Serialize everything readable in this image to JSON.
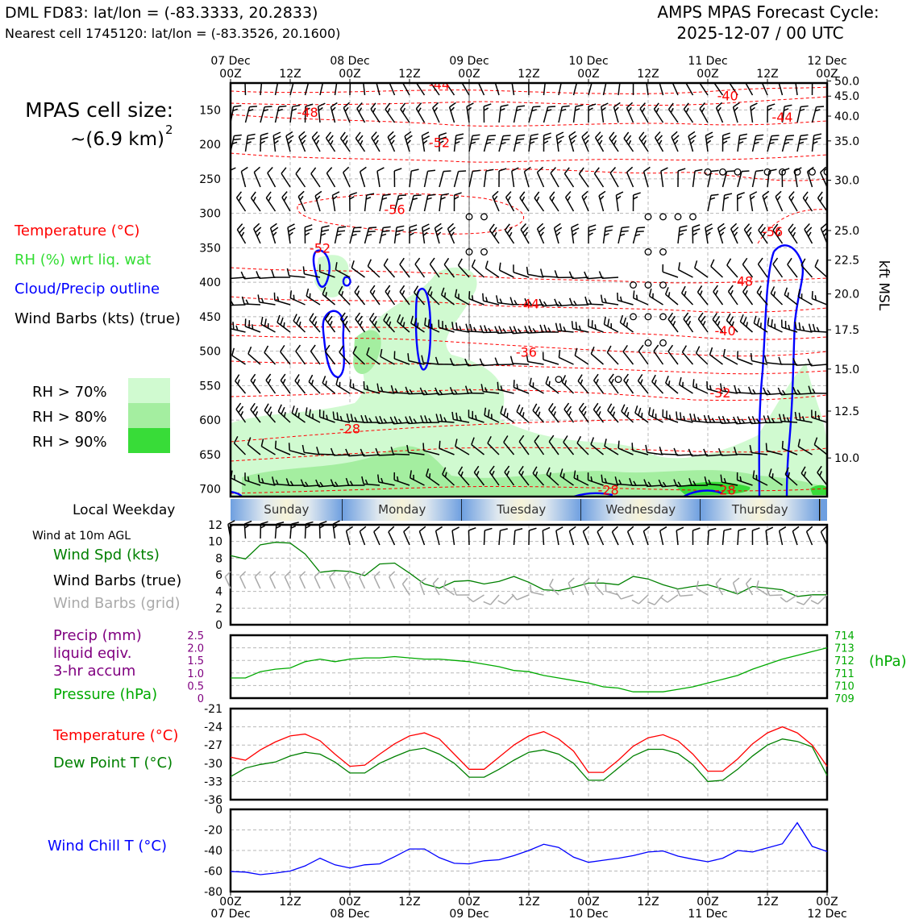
{
  "header": {
    "station": "DML FD83: lat/lon = (-83.3333, 20.2833)",
    "nearest": "Nearest cell 1745120: lat/lon = (-83.3526, 20.1600)",
    "cycle_line1": "AMPS MPAS Forecast Cycle:",
    "cycle_line2": "2025-12-07 / 00 UTC"
  },
  "left_panel": {
    "cell_size_line1": "MPAS cell size:",
    "cell_size_line2": "~(6.9 km)",
    "cell_size_exp": "2",
    "legend_temp": "Temperature (°C)",
    "legend_rh": "RH (%) wrt liq. wat",
    "legend_cloud": "Cloud/Precip outline",
    "legend_barbs": "Wind Barbs (kts) (true)",
    "rh_labels": [
      "RH > 70%",
      "RH > 80%",
      "RH > 90%"
    ],
    "local_weekday": "Local Weekday",
    "wind_10m": "Wind at 10m AGL",
    "wind_spd": "Wind Spd (kts)",
    "wind_barbs_true": "Wind Barbs (true)",
    "wind_barbs_grid": "Wind Barbs (grid)",
    "precip_1": "Precip (mm)",
    "precip_2": "liquid eqiv.",
    "precip_3": "3-hr accum",
    "pressure": "Pressure (hPa)",
    "temperature": "Temperature (°C)",
    "dewpoint": "Dew Point T (°C)",
    "windchill": "Wind Chill T (°C)"
  },
  "colors": {
    "temp": "#ff0000",
    "rh_text": "#33dd33",
    "cloud": "#0000ff",
    "rh70": "#d0fad0",
    "rh80": "#a4eea0",
    "rh90": "#38dc38",
    "precip": "#800080",
    "pressure": "#00aa00",
    "dew": "#008000",
    "windchill": "#0000ff",
    "grid_barbs": "#aaaaaa"
  },
  "chart_data": [
    {
      "type": "time-height cross section",
      "name": "main",
      "x_hours": [
        0,
        120
      ],
      "top_ticks": [
        {
          "h": 0,
          "day": "07 Dec",
          "hr": "00Z"
        },
        {
          "h": 12,
          "day": "",
          "hr": "12Z"
        },
        {
          "h": 24,
          "day": "08 Dec",
          "hr": "00Z"
        },
        {
          "h": 36,
          "day": "",
          "hr": "12Z"
        },
        {
          "h": 48,
          "day": "09 Dec",
          "hr": "00Z"
        },
        {
          "h": 60,
          "day": "",
          "hr": "12Z"
        },
        {
          "h": 72,
          "day": "10 Dec",
          "hr": "00Z"
        },
        {
          "h": 84,
          "day": "",
          "hr": "12Z"
        },
        {
          "h": 96,
          "day": "11 Dec",
          "hr": "00Z"
        },
        {
          "h": 108,
          "day": "",
          "hr": "12Z"
        },
        {
          "h": 120,
          "day": "12 Dec",
          "hr": "00Z"
        }
      ],
      "pressure_axis": {
        "min_hPa": 111,
        "max_hPa": 711,
        "ticks": [
          150,
          200,
          250,
          300,
          350,
          400,
          450,
          500,
          550,
          600,
          650,
          700
        ]
      },
      "height_axis": {
        "label": "kft MSL",
        "ticks": [
          {
            "p": 108,
            "label": "50.0"
          },
          {
            "p": 130,
            "label": "45.0"
          },
          {
            "p": 159,
            "label": "40.0"
          },
          {
            "p": 195,
            "label": "35.0"
          },
          {
            "p": 252,
            "label": "30.0"
          },
          {
            "p": 325,
            "label": "25.0"
          },
          {
            "p": 368,
            "label": "22.5"
          },
          {
            "p": 417,
            "label": "20.0"
          },
          {
            "p": 469,
            "label": "17.5"
          },
          {
            "p": 526,
            "label": "15.0"
          },
          {
            "p": 587,
            "label": "12.5"
          },
          {
            "p": 655,
            "label": "10.0"
          }
        ]
      },
      "temp_labels": [
        {
          "h": 42,
          "p": 113,
          "label": "-44"
        },
        {
          "h": 15.5,
          "p": 153,
          "label": "-48"
        },
        {
          "h": 42,
          "p": 197,
          "label": "-52"
        },
        {
          "h": 33,
          "p": 294,
          "label": "-56"
        },
        {
          "h": 18,
          "p": 350,
          "label": "-52"
        },
        {
          "h": 60,
          "p": 431,
          "label": "-44"
        },
        {
          "h": 59.5,
          "p": 501,
          "label": "-36"
        },
        {
          "h": 24,
          "p": 612,
          "label": "-28"
        },
        {
          "h": 100,
          "p": 129,
          "label": "-40"
        },
        {
          "h": 111,
          "p": 160,
          "label": "-44"
        },
        {
          "h": 109,
          "p": 326,
          "label": "-56"
        },
        {
          "h": 103,
          "p": 398,
          "label": "-48"
        },
        {
          "h": 99.5,
          "p": 470,
          "label": "-40"
        },
        {
          "h": 98.5,
          "p": 560,
          "label": "-32"
        },
        {
          "h": 76,
          "p": 701,
          "label": "-28"
        },
        {
          "h": 99.5,
          "p": 701,
          "label": "-28"
        }
      ],
      "calm_rows": [
        {
          "p": 240,
          "hours": [
            96,
            99,
            102,
            108,
            111,
            114,
            117,
            120
          ]
        },
        {
          "p": 305,
          "hours": [
            48,
            51,
            84,
            87,
            90,
            93
          ]
        },
        {
          "p": 356,
          "hours": [
            48,
            51,
            84,
            87
          ]
        },
        {
          "p": 404,
          "hours": [
            81,
            84,
            87
          ]
        },
        {
          "p": 450,
          "hours": [
            81,
            84,
            87
          ]
        },
        {
          "p": 488,
          "hours": [
            84,
            87
          ]
        },
        {
          "p": 541,
          "hours": [
            66,
            78
          ]
        }
      ]
    },
    {
      "type": "weekday strip",
      "days": [
        {
          "label": "Sunday",
          "h0": 0,
          "h1": 22.5
        },
        {
          "label": "Monday",
          "h0": 22.5,
          "h1": 46.5
        },
        {
          "label": "Tuesday",
          "h0": 46.5,
          "h1": 70.5
        },
        {
          "label": "Wednesday",
          "h0": 70.5,
          "h1": 94.5
        },
        {
          "label": "Thursday",
          "h0": 94.5,
          "h1": 118.5
        }
      ]
    },
    {
      "type": "line",
      "name": "wind10m",
      "ylabel": "Wind Spd (kts)",
      "ylim": [
        0,
        12
      ],
      "yticks": [
        "0",
        "2",
        "4",
        "6",
        "8",
        "10",
        "12"
      ],
      "series": [
        {
          "name": "Wind Spd (kts)",
          "x": [
            0,
            3,
            6,
            9,
            12,
            15,
            18,
            21,
            24,
            27,
            30,
            33,
            36,
            39,
            42,
            45,
            48,
            51,
            54,
            57,
            60,
            63,
            66,
            69,
            72,
            75,
            78,
            81,
            84,
            87,
            90,
            93,
            96,
            99,
            102,
            105,
            108,
            111,
            114,
            117,
            120
          ],
          "values": [
            8.3,
            7.9,
            9.6,
            9.9,
            9.8,
            8.5,
            6.3,
            6.5,
            6.4,
            5.9,
            7.3,
            7.4,
            6.2,
            4.9,
            4.4,
            5.2,
            5.3,
            4.9,
            5.2,
            5.8,
            5.1,
            4.2,
            4.1,
            4.5,
            5.0,
            5.0,
            4.8,
            5.8,
            5.5,
            4.8,
            4.3,
            4.6,
            4.8,
            4.3,
            3.7,
            4.6,
            4.4,
            4.2,
            3.4,
            3.6,
            3.6
          ]
        }
      ]
    },
    {
      "type": "line",
      "name": "precip_pressure",
      "y_left": {
        "label": "Precip (mm)",
        "ylim": [
          0,
          2.5
        ],
        "ticks": [
          "0",
          "0.5",
          "1.0",
          "1.5",
          "2.0",
          "2.5"
        ]
      },
      "y_right": {
        "label": "(hPa)",
        "ylim": [
          709,
          714
        ],
        "ticks": [
          "709",
          "710",
          "711",
          "712",
          "713",
          "714"
        ]
      },
      "series": [
        {
          "name": "Pressure (hPa)",
          "x": [
            0,
            3,
            6,
            9,
            12,
            15,
            18,
            21,
            24,
            27,
            30,
            33,
            36,
            39,
            42,
            45,
            48,
            51,
            54,
            57,
            60,
            63,
            66,
            69,
            72,
            75,
            78,
            81,
            84,
            87,
            90,
            93,
            96,
            99,
            102,
            105,
            108,
            111,
            114,
            117,
            120
          ],
          "values": [
            710.6,
            710.6,
            711.1,
            711.3,
            711.4,
            711.9,
            712.1,
            711.9,
            712.1,
            712.2,
            712.2,
            712.3,
            712.2,
            712.1,
            712.1,
            712.0,
            711.9,
            711.7,
            711.5,
            711.2,
            711.1,
            710.8,
            710.6,
            710.4,
            710.2,
            709.9,
            709.8,
            709.5,
            709.5,
            709.5,
            709.7,
            709.9,
            710.2,
            710.5,
            710.8,
            711.3,
            711.7,
            712.1,
            712.4,
            712.7,
            713.0
          ]
        }
      ]
    },
    {
      "type": "line",
      "name": "temp_dew",
      "ylim": [
        -36,
        -21
      ],
      "yticks": [
        "-36",
        "-33",
        "-30",
        "-27",
        "-24",
        "-21"
      ],
      "series": [
        {
          "name": "Temperature (°C)",
          "x": [
            0,
            3,
            6,
            9,
            12,
            15,
            18,
            21,
            24,
            27,
            30,
            33,
            36,
            39,
            42,
            45,
            48,
            51,
            54,
            57,
            60,
            63,
            66,
            69,
            72,
            75,
            78,
            81,
            84,
            87,
            90,
            93,
            96,
            99,
            102,
            105,
            108,
            111,
            114,
            117,
            120
          ],
          "values": [
            -29.0,
            -29.5,
            -27.8,
            -26.5,
            -25.5,
            -25.2,
            -26.3,
            -28.5,
            -30.5,
            -30.3,
            -28.5,
            -26.8,
            -25.5,
            -25.0,
            -26.0,
            -28.5,
            -31.0,
            -31.0,
            -29.0,
            -27.0,
            -25.5,
            -24.8,
            -26.0,
            -28.0,
            -31.5,
            -31.5,
            -29.5,
            -27.2,
            -25.8,
            -25.3,
            -26.3,
            -28.5,
            -31.3,
            -31.3,
            -29.3,
            -26.8,
            -25.0,
            -24.0,
            -25.0,
            -27.0,
            -30.5
          ]
        },
        {
          "name": "Dew Point T (°C)",
          "x": [
            0,
            3,
            6,
            9,
            12,
            15,
            18,
            21,
            24,
            27,
            30,
            33,
            36,
            39,
            42,
            45,
            48,
            51,
            54,
            57,
            60,
            63,
            66,
            69,
            72,
            75,
            78,
            81,
            84,
            87,
            90,
            93,
            96,
            99,
            102,
            105,
            108,
            111,
            114,
            117,
            120
          ],
          "values": [
            -32.2,
            -30.8,
            -30.2,
            -29.8,
            -28.8,
            -28.2,
            -28.5,
            -29.8,
            -31.6,
            -31.6,
            -30.0,
            -28.9,
            -27.9,
            -27.5,
            -28.5,
            -30.0,
            -32.3,
            -32.3,
            -31.0,
            -29.5,
            -28.2,
            -27.8,
            -28.5,
            -30.0,
            -32.8,
            -32.8,
            -30.8,
            -28.8,
            -27.7,
            -27.7,
            -28.4,
            -30.2,
            -33.0,
            -32.8,
            -31.0,
            -28.8,
            -27.0,
            -26.0,
            -26.4,
            -27.3,
            -32.0
          ]
        }
      ]
    },
    {
      "type": "line",
      "name": "windchill",
      "ylim": [
        -80,
        0
      ],
      "yticks": [
        "-80",
        "-60",
        "-40",
        "-20",
        "0"
      ],
      "xticks": [
        {
          "h": 0,
          "hr": "00Z",
          "day": "07 Dec"
        },
        {
          "h": 12,
          "hr": "12Z",
          "day": ""
        },
        {
          "h": 24,
          "hr": "00Z",
          "day": "08 Dec"
        },
        {
          "h": 36,
          "hr": "12Z",
          "day": ""
        },
        {
          "h": 48,
          "hr": "00Z",
          "day": "09 Dec"
        },
        {
          "h": 60,
          "hr": "12Z",
          "day": ""
        },
        {
          "h": 72,
          "hr": "00Z",
          "day": "10 Dec"
        },
        {
          "h": 84,
          "hr": "12Z",
          "day": ""
        },
        {
          "h": 96,
          "hr": "00Z",
          "day": "11 Dec"
        },
        {
          "h": 108,
          "hr": "12Z",
          "day": ""
        },
        {
          "h": 120,
          "hr": "00Z",
          "day": "12 Dec"
        }
      ],
      "series": [
        {
          "name": "Wind Chill T (°C)",
          "x": [
            0,
            3,
            6,
            9,
            12,
            15,
            18,
            21,
            24,
            27,
            30,
            33,
            36,
            39,
            42,
            45,
            48,
            51,
            54,
            57,
            60,
            63,
            66,
            69,
            72,
            75,
            78,
            81,
            84,
            87,
            90,
            93,
            96,
            99,
            102,
            105,
            108,
            111,
            114,
            117,
            120
          ],
          "values": [
            -60.5,
            -61.0,
            -63.5,
            -62.0,
            -60.0,
            -55.0,
            -47.5,
            -54.0,
            -57.0,
            -54.0,
            -53.0,
            -46.0,
            -38.5,
            -38.5,
            -47.0,
            -52.5,
            -53.0,
            -50.0,
            -49.0,
            -45.0,
            -40.0,
            -34.0,
            -37.0,
            -46.5,
            -51.5,
            -49.5,
            -47.5,
            -45.0,
            -41.5,
            -40.5,
            -45.5,
            -48.5,
            -51.0,
            -47.5,
            -40.0,
            -41.5,
            -37.5,
            -33.5,
            -13.0,
            -36.0,
            -41.0
          ]
        }
      ]
    }
  ]
}
